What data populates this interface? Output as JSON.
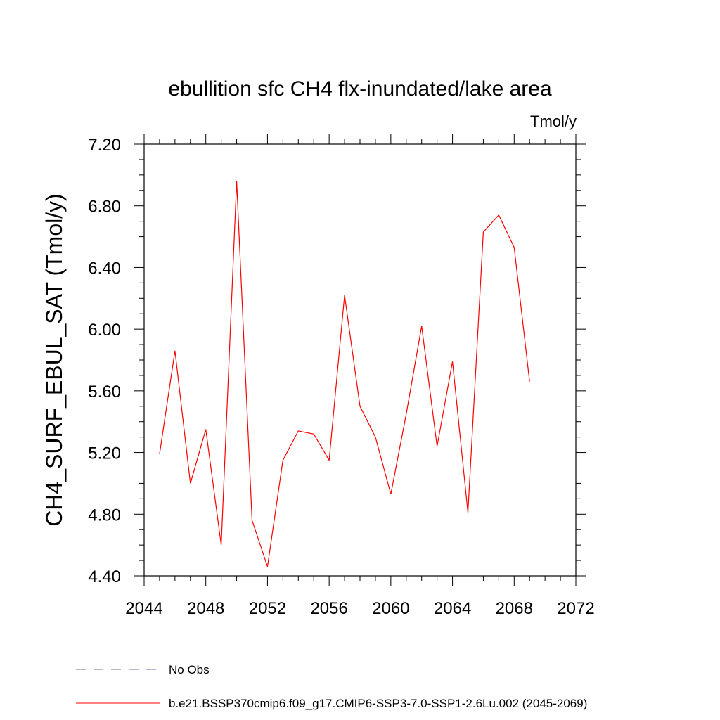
{
  "chart_data": {
    "type": "line",
    "title": "ebullition sfc CH4 flx-inundated/lake area",
    "units": "Tmol/y",
    "ylabel": "CH4_SURF_EBUL_SAT  (Tmol/y)",
    "xlim": [
      2044,
      2072
    ],
    "ylim": [
      4.4,
      7.2
    ],
    "xticks": [
      "2044",
      "2048",
      "2052",
      "2056",
      "2060",
      "2064",
      "2068",
      "2072"
    ],
    "yticks": [
      "4.40",
      "4.80",
      "5.20",
      "5.60",
      "6.00",
      "6.40",
      "6.80",
      "7.20"
    ],
    "grid": false,
    "legend_position": "bottom",
    "series": [
      {
        "name": "b.e21.BSSP370cmip6.f09_g17.CMIP6-SSP3-7.0-SSP1-2.6Lu.002 (2045-2069)",
        "color": "#ff0000",
        "x": [
          2045,
          2046,
          2047,
          2048,
          2049,
          2050,
          2051,
          2052,
          2053,
          2054,
          2055,
          2056,
          2057,
          2058,
          2059,
          2060,
          2061,
          2062,
          2063,
          2064,
          2065,
          2066,
          2067,
          2068,
          2069
        ],
        "values": [
          5.19,
          5.86,
          5.0,
          5.35,
          4.6,
          6.96,
          4.76,
          4.46,
          5.15,
          5.34,
          5.32,
          5.15,
          6.22,
          5.5,
          5.3,
          4.93,
          5.45,
          6.02,
          5.24,
          5.79,
          4.81,
          6.63,
          6.74,
          6.53,
          5.66
        ]
      }
    ],
    "legend": [
      {
        "label": "No Obs",
        "style": "dashed",
        "color": "#7b68a6"
      },
      {
        "label": "b.e21.BSSP370cmip6.f09_g17.CMIP6-SSP3-7.0-SSP1-2.6Lu.002 (2045-2069)",
        "style": "solid",
        "color": "#ff0000"
      }
    ]
  }
}
